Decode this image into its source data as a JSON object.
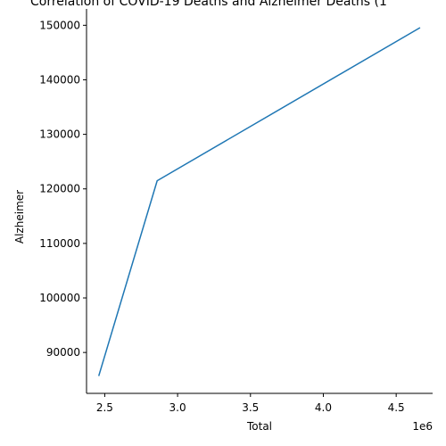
{
  "chart_data": {
    "type": "line",
    "title": "Correlation of COVID-19 Deaths and Alzheimer Deaths (1",
    "xlabel": "Total",
    "ylabel": "Alzheimer",
    "x_offset_label": "1e6",
    "xlim": [
      2.375,
      4.75
    ],
    "ylim": [
      82500,
      153000
    ],
    "xticks": [
      2.5,
      3.0,
      3.5,
      4.0,
      4.5
    ],
    "xtick_labels": [
      "2.5",
      "3.0",
      "3.5",
      "4.0",
      "4.5"
    ],
    "yticks": [
      90000,
      100000,
      110000,
      120000,
      130000,
      140000,
      150000
    ],
    "ytick_labels": [
      "90000",
      "100000",
      "110000",
      "120000",
      "130000",
      "140000",
      "150000"
    ],
    "grid": false,
    "series": [
      {
        "color": "#1f77b4",
        "x": [
          2.46,
          2.86,
          4.66
        ],
        "y": [
          85800,
          121500,
          149500
        ]
      }
    ]
  }
}
